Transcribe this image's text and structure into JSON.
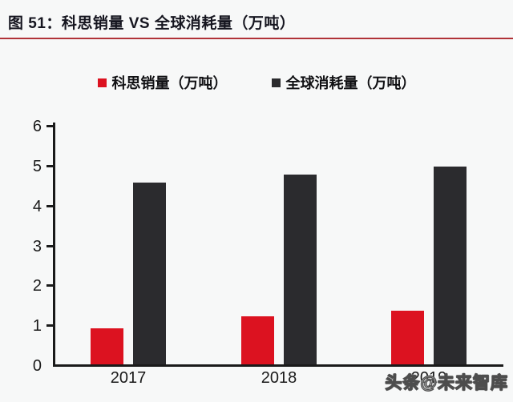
{
  "figure": {
    "title": "图 51：科思销量 VS 全球消耗量（万吨）",
    "watermark": "头条@未来智库",
    "divider_color": "#b03238",
    "background_color": "#f7f8f8",
    "axis_color": "#1a1a1a"
  },
  "chart_data": {
    "type": "bar",
    "title": "科思销量 VS 全球消耗量（万吨）",
    "categories": [
      "2017",
      "2018",
      "2019"
    ],
    "series": [
      {
        "name": "科思销量（万吨）",
        "color": "#dc1220",
        "values": [
          0.9,
          1.2,
          1.35
        ]
      },
      {
        "name": "全球消耗量（万吨）",
        "color": "#2b2b2e",
        "values": [
          4.55,
          4.75,
          4.95
        ]
      }
    ],
    "xlabel": "",
    "ylabel": "",
    "ylim": [
      0,
      6
    ],
    "yticks": [
      0,
      1,
      2,
      3,
      4,
      5,
      6
    ],
    "grid": false,
    "legend_position": "top-center"
  }
}
